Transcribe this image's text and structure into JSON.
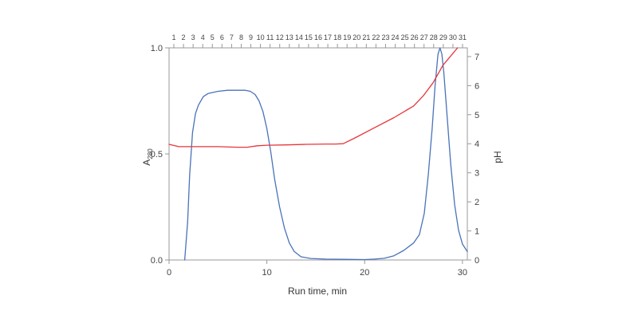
{
  "chart_data": {
    "type": "line",
    "xlabel": "Run time, min",
    "ylabel_left": {
      "main": "A",
      "sub": "280"
    },
    "ylabel_right": "pH",
    "xlim": [
      0,
      30.5
    ],
    "ylim_left": [
      0,
      1.0
    ],
    "ylim_right": [
      0,
      7.3
    ],
    "x_ticks": [
      "0",
      "10",
      "20",
      "30"
    ],
    "y_left_ticks": [
      "0.0",
      "0.5",
      "1.0"
    ],
    "y_right_ticks": [
      "0",
      "1",
      "2",
      "3",
      "4",
      "5",
      "6",
      "7"
    ],
    "fraction_ticks": [
      "1",
      "2",
      "3",
      "4",
      "5",
      "6",
      "7",
      "8",
      "9",
      "10",
      "11",
      "12",
      "13",
      "14",
      "15",
      "16",
      "17",
      "18",
      "19",
      "20",
      "21",
      "22",
      "23",
      "24",
      "25",
      "26",
      "27",
      "28",
      "29",
      "30",
      "31"
    ],
    "grid": false,
    "colors": {
      "absorbance": "#4a72b8",
      "ph": "#e8353b",
      "frame": "#999999"
    },
    "series": [
      {
        "axis": "left",
        "color": "#4a72b8",
        "x": [
          0,
          1.6,
          1.9,
          2.1,
          2.4,
          2.7,
          3.0,
          3.5,
          4.0,
          5.0,
          6.0,
          7.0,
          7.8,
          8.3,
          8.8,
          9.2,
          9.6,
          10.0,
          10.4,
          10.8,
          11.3,
          11.8,
          12.3,
          12.8,
          13.5,
          14.5,
          16.0,
          18.0,
          20.0,
          21.0,
          22.0,
          23.0,
          24.0,
          25.0,
          25.6,
          26.1,
          26.5,
          26.9,
          27.2,
          27.5,
          27.7,
          27.9,
          28.1,
          28.4,
          28.8,
          29.2,
          29.6,
          30.0,
          30.5
        ],
        "values": [
          null,
          0.0,
          0.18,
          0.4,
          0.6,
          0.69,
          0.73,
          0.77,
          0.785,
          0.795,
          0.8,
          0.8,
          0.8,
          0.795,
          0.78,
          0.75,
          0.7,
          0.62,
          0.51,
          0.38,
          0.25,
          0.15,
          0.08,
          0.04,
          0.015,
          0.007,
          0.004,
          0.003,
          0.002,
          0.004,
          0.008,
          0.02,
          0.045,
          0.08,
          0.12,
          0.22,
          0.4,
          0.62,
          0.82,
          0.97,
          1.0,
          0.97,
          0.88,
          0.7,
          0.45,
          0.26,
          0.14,
          0.075,
          0.04
        ]
      },
      {
        "axis": "right",
        "color": "#e8353b",
        "x": [
          0,
          1,
          3,
          5,
          7,
          8,
          9,
          10,
          12,
          14,
          16,
          17,
          17.8,
          19,
          21,
          23,
          25,
          26,
          27,
          28,
          29,
          29.5
        ],
        "values": [
          3.98,
          3.9,
          3.9,
          3.9,
          3.88,
          3.88,
          3.93,
          3.95,
          3.96,
          3.98,
          3.99,
          3.99,
          4.0,
          4.2,
          4.55,
          4.9,
          5.3,
          5.65,
          6.1,
          6.7,
          7.1,
          7.3
        ]
      }
    ]
  }
}
